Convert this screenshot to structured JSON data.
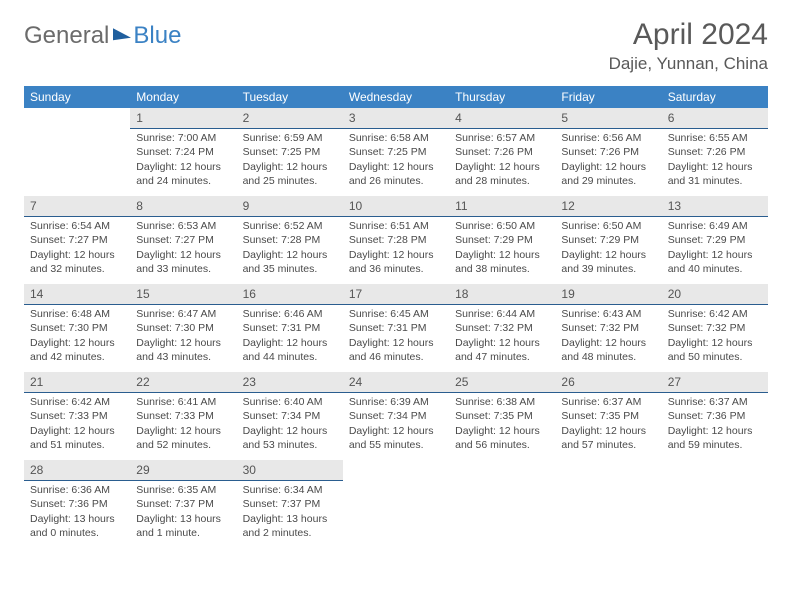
{
  "logo": {
    "general": "General",
    "blue": "Blue"
  },
  "title": "April 2024",
  "location": "Dajie, Yunnan, China",
  "colors": {
    "header_bg": "#3b82c4",
    "header_text": "#ffffff",
    "daynum_bg": "#e8e8e8",
    "daynum_border": "#2a5d8f",
    "body_text": "#4a4a4a",
    "title_text": "#595959"
  },
  "week_headers": [
    "Sunday",
    "Monday",
    "Tuesday",
    "Wednesday",
    "Thursday",
    "Friday",
    "Saturday"
  ],
  "weeks": [
    [
      {
        "day": "",
        "sunrise": "",
        "sunset": "",
        "daylight": ""
      },
      {
        "day": "1",
        "sunrise": "Sunrise: 7:00 AM",
        "sunset": "Sunset: 7:24 PM",
        "daylight": "Daylight: 12 hours and 24 minutes."
      },
      {
        "day": "2",
        "sunrise": "Sunrise: 6:59 AM",
        "sunset": "Sunset: 7:25 PM",
        "daylight": "Daylight: 12 hours and 25 minutes."
      },
      {
        "day": "3",
        "sunrise": "Sunrise: 6:58 AM",
        "sunset": "Sunset: 7:25 PM",
        "daylight": "Daylight: 12 hours and 26 minutes."
      },
      {
        "day": "4",
        "sunrise": "Sunrise: 6:57 AM",
        "sunset": "Sunset: 7:26 PM",
        "daylight": "Daylight: 12 hours and 28 minutes."
      },
      {
        "day": "5",
        "sunrise": "Sunrise: 6:56 AM",
        "sunset": "Sunset: 7:26 PM",
        "daylight": "Daylight: 12 hours and 29 minutes."
      },
      {
        "day": "6",
        "sunrise": "Sunrise: 6:55 AM",
        "sunset": "Sunset: 7:26 PM",
        "daylight": "Daylight: 12 hours and 31 minutes."
      }
    ],
    [
      {
        "day": "7",
        "sunrise": "Sunrise: 6:54 AM",
        "sunset": "Sunset: 7:27 PM",
        "daylight": "Daylight: 12 hours and 32 minutes."
      },
      {
        "day": "8",
        "sunrise": "Sunrise: 6:53 AM",
        "sunset": "Sunset: 7:27 PM",
        "daylight": "Daylight: 12 hours and 33 minutes."
      },
      {
        "day": "9",
        "sunrise": "Sunrise: 6:52 AM",
        "sunset": "Sunset: 7:28 PM",
        "daylight": "Daylight: 12 hours and 35 minutes."
      },
      {
        "day": "10",
        "sunrise": "Sunrise: 6:51 AM",
        "sunset": "Sunset: 7:28 PM",
        "daylight": "Daylight: 12 hours and 36 minutes."
      },
      {
        "day": "11",
        "sunrise": "Sunrise: 6:50 AM",
        "sunset": "Sunset: 7:29 PM",
        "daylight": "Daylight: 12 hours and 38 minutes."
      },
      {
        "day": "12",
        "sunrise": "Sunrise: 6:50 AM",
        "sunset": "Sunset: 7:29 PM",
        "daylight": "Daylight: 12 hours and 39 minutes."
      },
      {
        "day": "13",
        "sunrise": "Sunrise: 6:49 AM",
        "sunset": "Sunset: 7:29 PM",
        "daylight": "Daylight: 12 hours and 40 minutes."
      }
    ],
    [
      {
        "day": "14",
        "sunrise": "Sunrise: 6:48 AM",
        "sunset": "Sunset: 7:30 PM",
        "daylight": "Daylight: 12 hours and 42 minutes."
      },
      {
        "day": "15",
        "sunrise": "Sunrise: 6:47 AM",
        "sunset": "Sunset: 7:30 PM",
        "daylight": "Daylight: 12 hours and 43 minutes."
      },
      {
        "day": "16",
        "sunrise": "Sunrise: 6:46 AM",
        "sunset": "Sunset: 7:31 PM",
        "daylight": "Daylight: 12 hours and 44 minutes."
      },
      {
        "day": "17",
        "sunrise": "Sunrise: 6:45 AM",
        "sunset": "Sunset: 7:31 PM",
        "daylight": "Daylight: 12 hours and 46 minutes."
      },
      {
        "day": "18",
        "sunrise": "Sunrise: 6:44 AM",
        "sunset": "Sunset: 7:32 PM",
        "daylight": "Daylight: 12 hours and 47 minutes."
      },
      {
        "day": "19",
        "sunrise": "Sunrise: 6:43 AM",
        "sunset": "Sunset: 7:32 PM",
        "daylight": "Daylight: 12 hours and 48 minutes."
      },
      {
        "day": "20",
        "sunrise": "Sunrise: 6:42 AM",
        "sunset": "Sunset: 7:32 PM",
        "daylight": "Daylight: 12 hours and 50 minutes."
      }
    ],
    [
      {
        "day": "21",
        "sunrise": "Sunrise: 6:42 AM",
        "sunset": "Sunset: 7:33 PM",
        "daylight": "Daylight: 12 hours and 51 minutes."
      },
      {
        "day": "22",
        "sunrise": "Sunrise: 6:41 AM",
        "sunset": "Sunset: 7:33 PM",
        "daylight": "Daylight: 12 hours and 52 minutes."
      },
      {
        "day": "23",
        "sunrise": "Sunrise: 6:40 AM",
        "sunset": "Sunset: 7:34 PM",
        "daylight": "Daylight: 12 hours and 53 minutes."
      },
      {
        "day": "24",
        "sunrise": "Sunrise: 6:39 AM",
        "sunset": "Sunset: 7:34 PM",
        "daylight": "Daylight: 12 hours and 55 minutes."
      },
      {
        "day": "25",
        "sunrise": "Sunrise: 6:38 AM",
        "sunset": "Sunset: 7:35 PM",
        "daylight": "Daylight: 12 hours and 56 minutes."
      },
      {
        "day": "26",
        "sunrise": "Sunrise: 6:37 AM",
        "sunset": "Sunset: 7:35 PM",
        "daylight": "Daylight: 12 hours and 57 minutes."
      },
      {
        "day": "27",
        "sunrise": "Sunrise: 6:37 AM",
        "sunset": "Sunset: 7:36 PM",
        "daylight": "Daylight: 12 hours and 59 minutes."
      }
    ],
    [
      {
        "day": "28",
        "sunrise": "Sunrise: 6:36 AM",
        "sunset": "Sunset: 7:36 PM",
        "daylight": "Daylight: 13 hours and 0 minutes."
      },
      {
        "day": "29",
        "sunrise": "Sunrise: 6:35 AM",
        "sunset": "Sunset: 7:37 PM",
        "daylight": "Daylight: 13 hours and 1 minute."
      },
      {
        "day": "30",
        "sunrise": "Sunrise: 6:34 AM",
        "sunset": "Sunset: 7:37 PM",
        "daylight": "Daylight: 13 hours and 2 minutes."
      },
      {
        "day": "",
        "sunrise": "",
        "sunset": "",
        "daylight": ""
      },
      {
        "day": "",
        "sunrise": "",
        "sunset": "",
        "daylight": ""
      },
      {
        "day": "",
        "sunrise": "",
        "sunset": "",
        "daylight": ""
      },
      {
        "day": "",
        "sunrise": "",
        "sunset": "",
        "daylight": ""
      }
    ]
  ]
}
